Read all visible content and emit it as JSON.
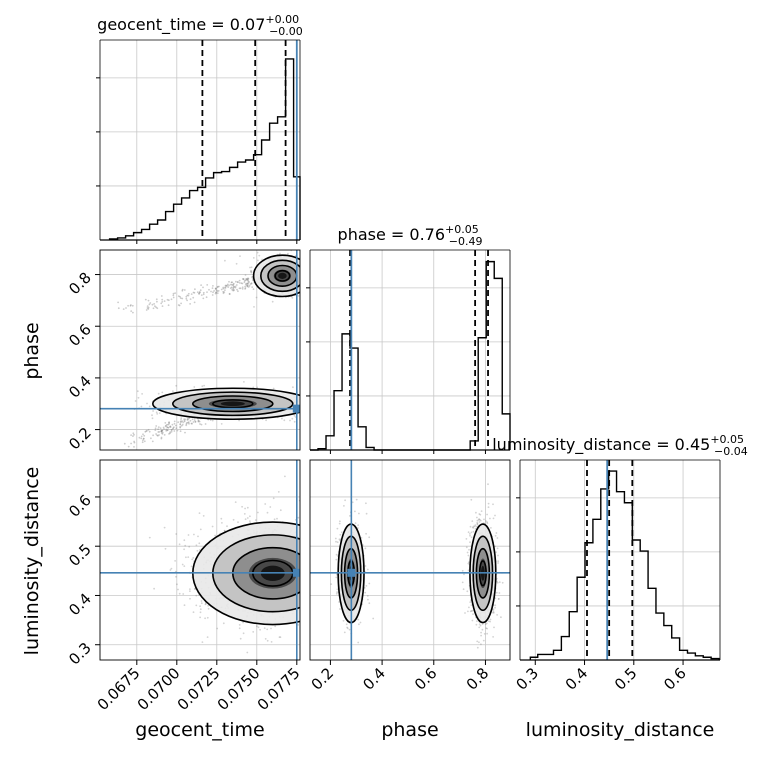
{
  "chart_data": {
    "type": "corner",
    "parameters": [
      "geocent_time",
      "phase",
      "luminosity_distance"
    ],
    "colors": {
      "truth": "#4682b4",
      "hist": "#000000",
      "grid": "#c8c8c8",
      "points": "#808080"
    },
    "grid": true,
    "ranges": {
      "geocent_time": [
        0.0652,
        0.0777
      ],
      "phase": [
        0.121,
        0.895
      ],
      "luminosity_distance": [
        0.269,
        0.675
      ]
    },
    "truths": {
      "geocent_time": 0.0775,
      "phase": 0.281,
      "luminosity_distance": 0.446
    },
    "ticks": {
      "geocent_time": {
        "values": [
          0.0675,
          0.07,
          0.0725,
          0.075,
          0.0775
        ],
        "labels": [
          "0.0675",
          "0.0700",
          "0.0725",
          "0.0750",
          "0.0775"
        ]
      },
      "phase": {
        "values": [
          0.2,
          0.4,
          0.6,
          0.8
        ],
        "labels": [
          "0.2",
          "0.4",
          "0.6",
          "0.8"
        ]
      },
      "luminosity_distance": {
        "values": [
          0.3,
          0.4,
          0.5,
          0.6
        ],
        "labels": [
          "0.3",
          "0.4",
          "0.5",
          "0.6"
        ]
      }
    },
    "marginals": [
      {
        "parameter": "geocent_time",
        "title": {
          "main": "geocent_time = 0.07",
          "sup": "+0.00",
          "sub": "−0.00"
        },
        "quantiles": [
          0.0716,
          0.0749,
          0.0768
        ],
        "bin_edges": [
          0.0658,
          0.0663,
          0.0668,
          0.0673,
          0.0678,
          0.0683,
          0.0688,
          0.0693,
          0.0698,
          0.0703,
          0.0708,
          0.0713,
          0.0718,
          0.0723,
          0.0728,
          0.0733,
          0.0738,
          0.0743,
          0.0748,
          0.0753,
          0.0758,
          0.0763,
          0.0768,
          0.0773,
          0.0777
        ],
        "counts": [
          1,
          2,
          4,
          7,
          10,
          15,
          19,
          27,
          34,
          40,
          47,
          50,
          59,
          64,
          65,
          69,
          74,
          76,
          81,
          95,
          111,
          117,
          172,
          60
        ],
        "ylim": [
          0,
          190
        ]
      },
      {
        "parameter": "phase",
        "title": {
          "main": "phase = 0.76",
          "sup": "+0.05",
          "sub": "−0.49"
        },
        "quantiles": [
          0.276,
          0.76,
          0.81
        ],
        "bin_edges": [
          0.121,
          0.152,
          0.183,
          0.214,
          0.245,
          0.276,
          0.307,
          0.338,
          0.369,
          0.4,
          0.431,
          0.462,
          0.493,
          0.524,
          0.555,
          0.586,
          0.617,
          0.648,
          0.679,
          0.71,
          0.741,
          0.772,
          0.803,
          0.834,
          0.865,
          0.895
        ],
        "counts": [
          0,
          2,
          22,
          92,
          180,
          158,
          36,
          4,
          0,
          0,
          0,
          0,
          0,
          0,
          0,
          0,
          0,
          0,
          0,
          0,
          14,
          174,
          292,
          266,
          56
        ],
        "ylim": [
          0,
          310
        ]
      },
      {
        "parameter": "luminosity_distance",
        "title": {
          "main": "luminosity_distance = 0.45",
          "sup": "+0.05",
          "sub": "−0.04"
        },
        "quantiles": [
          0.405,
          0.45,
          0.497
        ],
        "bin_edges": [
          0.29,
          0.305,
          0.321,
          0.337,
          0.353,
          0.369,
          0.385,
          0.401,
          0.417,
          0.433,
          0.449,
          0.465,
          0.481,
          0.497,
          0.513,
          0.529,
          0.545,
          0.561,
          0.577,
          0.593,
          0.609,
          0.625,
          0.641,
          0.657,
          0.673
        ],
        "counts": [
          2,
          4,
          4,
          7,
          17,
          35,
          60,
          85,
          102,
          124,
          137,
          122,
          114,
          87,
          79,
          52,
          34,
          25,
          16,
          7,
          5,
          3,
          2,
          1
        ],
        "ylim": [
          0,
          145
        ]
      }
    ],
    "joint_2d": [
      {
        "x": "geocent_time",
        "y": "phase",
        "clusters": [
          {
            "center": [
              0.0766,
              0.795
            ],
            "std": [
              0.0009,
              0.04
            ],
            "n": 600,
            "trail_from": [
              0.0668,
              0.665
            ]
          },
          {
            "center": [
              0.0735,
              0.3
            ],
            "std": [
              0.0025,
              0.03
            ],
            "n": 500,
            "trail_from": [
              0.0668,
              0.14
            ]
          }
        ]
      },
      {
        "x": "geocent_time",
        "y": "luminosity_distance",
        "clusters": [
          {
            "center": [
              0.076,
              0.445
            ],
            "std": [
              0.0025,
              0.052
            ],
            "n": 1300
          }
        ]
      },
      {
        "x": "phase",
        "y": "luminosity_distance",
        "clusters": [
          {
            "center": [
              0.28,
              0.445
            ],
            "std": [
              0.025,
              0.05
            ],
            "n": 600
          },
          {
            "center": [
              0.79,
              0.445
            ],
            "std": [
              0.025,
              0.05
            ],
            "n": 1100
          }
        ]
      }
    ],
    "axis_labels": {
      "x": [
        "geocent_time",
        "phase",
        "luminosity_distance"
      ],
      "y": [
        "phase",
        "luminosity_distance"
      ]
    }
  }
}
